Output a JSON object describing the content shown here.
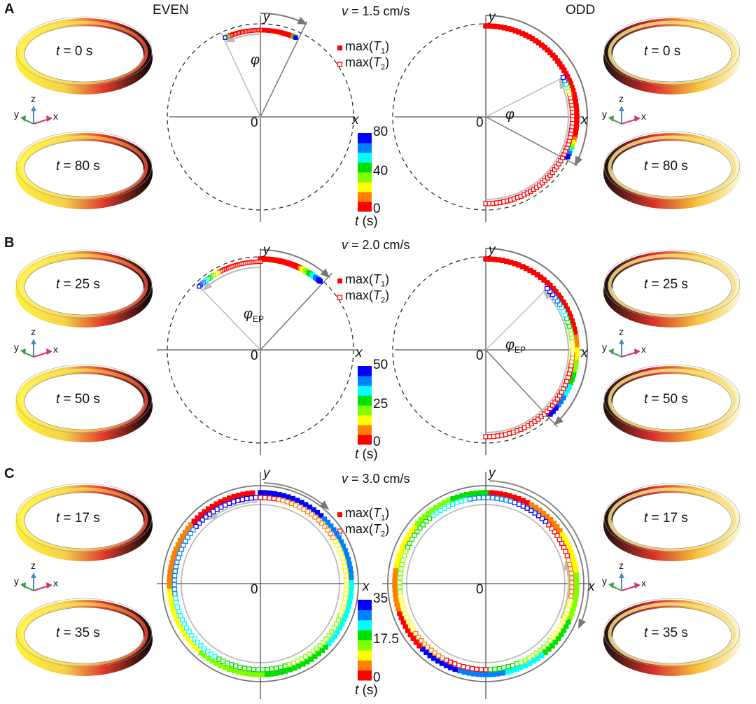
{
  "figure": {
    "column_titles": {
      "even": "EVEN",
      "odd": "ODD"
    },
    "legend": {
      "t1": "max(T1)",
      "t2": "max(T2)",
      "t1_main": "max(",
      "t1_var": "T",
      "t1_sub": "1",
      "t2_sub": "2",
      "close": ")"
    },
    "axis_labels": {
      "x": "x",
      "y": "y",
      "origin": "0"
    },
    "colorbar_unit_var": "t",
    "colorbar_unit": " (s)",
    "triad_labels": {
      "x": "x",
      "y": "y",
      "z": "z"
    },
    "colormap": [
      "#ff0000",
      "#ff8000",
      "#ffff00",
      "#80ff00",
      "#00e000",
      "#00ffff",
      "#0080ff",
      "#0000ff"
    ],
    "panels": [
      {
        "letter": "A",
        "velocity_label": "v = 1.5 cm/s",
        "velocity_value": "1.5 cm/s",
        "angle_label": "φ",
        "angle_sub": "",
        "colorbar_ticks": [
          "80",
          "40",
          "0"
        ],
        "left_rings": [
          {
            "label": "t = 0 s",
            "t": "0 s"
          },
          {
            "label": "t = 80 s",
            "t": "80 s"
          }
        ],
        "right_rings": [
          {
            "label": "t = 0 s",
            "t": "0 s"
          },
          {
            "label": "t = 80 s",
            "t": "80 s"
          }
        ]
      },
      {
        "letter": "B",
        "velocity_label": "v = 2.0 cm/s",
        "velocity_value": "2.0 cm/s",
        "angle_label": "φ",
        "angle_sub": "EP",
        "colorbar_ticks": [
          "50",
          "25",
          "0"
        ],
        "left_rings": [
          {
            "label": "t = 25 s",
            "t": "25 s"
          },
          {
            "label": "t = 50 s",
            "t": "50 s"
          }
        ],
        "right_rings": [
          {
            "label": "t = 25 s",
            "t": "25 s"
          },
          {
            "label": "t = 50 s",
            "t": "50 s"
          }
        ]
      },
      {
        "letter": "C",
        "velocity_label": "v = 3.0 cm/s",
        "velocity_value": "3.0 cm/s",
        "angle_label": "",
        "angle_sub": "",
        "colorbar_ticks": [
          "35",
          "17.5",
          "0"
        ],
        "left_rings": [
          {
            "label": "t = 17 s",
            "t": "17 s"
          },
          {
            "label": "t = 35 s",
            "t": "35 s"
          }
        ],
        "right_rings": [
          {
            "label": "t = 17 s",
            "t": "17 s"
          },
          {
            "label": "t = 35 s",
            "t": "35 s"
          }
        ]
      }
    ]
  },
  "chart_data": [
    {
      "type": "scatter",
      "title": "A EVEN, v = 1.5 cm/s",
      "xlabel": "x",
      "ylabel": "y",
      "colorbar": {
        "label": "t (s)",
        "range": [
          0,
          80
        ],
        "ticks": [
          0,
          40,
          80
        ]
      },
      "series": [
        {
          "name": "max(T1)",
          "marker": "filled-square",
          "angle_deg_start": 90,
          "angle_deg_end": 66,
          "t_start": 0,
          "t_end": 80
        },
        {
          "name": "max(T2)",
          "marker": "open-square",
          "angle_deg_start": 90,
          "angle_deg_end": 114,
          "t_start": 0,
          "t_end": 80
        }
      ],
      "annotations": [
        "φ"
      ]
    },
    {
      "type": "scatter",
      "title": "A ODD, v = 1.5 cm/s",
      "xlabel": "x",
      "ylabel": "y",
      "colorbar": {
        "label": "t (s)",
        "range": [
          0,
          80
        ],
        "ticks": [
          0,
          40,
          80
        ]
      },
      "series": [
        {
          "name": "max(T1)",
          "marker": "filled-square",
          "angle_deg_start": 90,
          "angle_deg_end": -27,
          "t_start": 0,
          "t_end": 80
        },
        {
          "name": "max(T2)",
          "marker": "open-square",
          "angle_deg_start": -90,
          "angle_deg_end": 27,
          "t_start": 0,
          "t_end": 80
        }
      ],
      "annotations": [
        "φ"
      ]
    },
    {
      "type": "scatter",
      "title": "B EVEN, v = 2.0 cm/s",
      "xlabel": "x",
      "ylabel": "y",
      "colorbar": {
        "label": "t (s)",
        "range": [
          0,
          50
        ],
        "ticks": [
          0,
          25,
          50
        ]
      },
      "series": [
        {
          "name": "max(T1)",
          "marker": "filled-square",
          "angle_deg_start": 90,
          "angle_deg_end": 48,
          "t_start": 0,
          "t_end": 50
        },
        {
          "name": "max(T2)",
          "marker": "open-square",
          "angle_deg_start": 90,
          "angle_deg_end": 134,
          "t_start": 0,
          "t_end": 50
        }
      ],
      "annotations": [
        "φEP"
      ]
    },
    {
      "type": "scatter",
      "title": "B ODD, v = 2.0 cm/s",
      "xlabel": "x",
      "ylabel": "y",
      "colorbar": {
        "label": "t (s)",
        "range": [
          0,
          50
        ],
        "ticks": [
          0,
          25,
          50
        ]
      },
      "series": [
        {
          "name": "max(T1)",
          "marker": "filled-square",
          "angle_deg_start": 90,
          "angle_deg_end": -45,
          "t_start": 0,
          "t_end": 50
        },
        {
          "name": "max(T2)",
          "marker": "open-square",
          "angle_deg_start": -90,
          "angle_deg_end": 45,
          "t_start": 0,
          "t_end": 50
        }
      ],
      "annotations": [
        "φEP"
      ]
    },
    {
      "type": "scatter",
      "title": "C EVEN, v = 3.0 cm/s",
      "xlabel": "x",
      "ylabel": "y",
      "colorbar": {
        "label": "t (s)",
        "range": [
          0,
          35
        ],
        "ticks": [
          0,
          17.5,
          35
        ]
      },
      "series": [
        {
          "name": "max(T1)",
          "marker": "filled-square",
          "direction": "clockwise",
          "turns": "continuous rotation",
          "t_start": 0,
          "t_end": 35
        },
        {
          "name": "max(T2)",
          "marker": "open-square",
          "direction": "counter-clockwise",
          "turns": "continuous rotation",
          "t_start": 0,
          "t_end": 35
        }
      ]
    },
    {
      "type": "scatter",
      "title": "C ODD, v = 3.0 cm/s",
      "xlabel": "x",
      "ylabel": "y",
      "colorbar": {
        "label": "t (s)",
        "range": [
          0,
          35
        ],
        "ticks": [
          0,
          17.5,
          35
        ]
      },
      "series": [
        {
          "name": "max(T1)",
          "marker": "filled-square",
          "direction": "clockwise",
          "turns": "continuous rotation",
          "t_start": 0,
          "t_end": 35
        },
        {
          "name": "max(T2)",
          "marker": "open-square",
          "direction": "counter-clockwise",
          "turns": "continuous rotation",
          "t_start": 0,
          "t_end": 35
        }
      ]
    }
  ]
}
